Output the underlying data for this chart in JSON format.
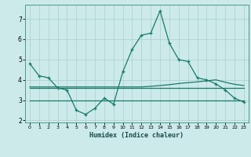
{
  "x": [
    0,
    1,
    2,
    3,
    4,
    5,
    6,
    7,
    8,
    9,
    10,
    11,
    12,
    13,
    14,
    15,
    16,
    17,
    18,
    19,
    20,
    21,
    22,
    23
  ],
  "y_main": [
    4.8,
    4.2,
    4.1,
    3.6,
    3.5,
    2.5,
    2.3,
    2.6,
    3.1,
    2.8,
    4.4,
    5.5,
    6.2,
    6.3,
    7.4,
    5.8,
    5.0,
    4.9,
    4.1,
    4.0,
    3.8,
    3.5,
    3.1,
    2.9
  ],
  "y_avg_high": [
    3.65,
    3.65,
    3.65,
    3.65,
    3.65,
    3.65,
    3.65,
    3.65,
    3.65,
    3.65,
    3.65,
    3.65,
    3.65,
    3.68,
    3.72,
    3.76,
    3.82,
    3.86,
    3.9,
    3.95,
    4.0,
    3.88,
    3.78,
    3.72
  ],
  "y_avg_mid": [
    3.62,
    3.62,
    3.62,
    3.62,
    3.62,
    3.62,
    3.62,
    3.62,
    3.62,
    3.62,
    3.62,
    3.62,
    3.62,
    3.62,
    3.62,
    3.62,
    3.62,
    3.62,
    3.62,
    3.62,
    3.62,
    3.62,
    3.62,
    3.62
  ],
  "y_flat": [
    3.0,
    3.0,
    3.0,
    3.0,
    3.0,
    3.0,
    3.0,
    3.0,
    3.0,
    3.0,
    3.0,
    3.0,
    3.0,
    3.0,
    3.0,
    3.0,
    3.0,
    3.0,
    3.0,
    3.0,
    3.0,
    3.0,
    3.0,
    3.0
  ],
  "line_color": "#1a7a6a",
  "bg_color": "#cceaea",
  "grid_color": "#aacece",
  "xlabel": "Humidex (Indice chaleur)",
  "ylim": [
    1.9,
    7.7
  ],
  "xlim": [
    -0.5,
    23.5
  ],
  "yticks": [
    2,
    3,
    4,
    5,
    6,
    7
  ],
  "xticks": [
    0,
    1,
    2,
    3,
    4,
    5,
    6,
    7,
    8,
    9,
    10,
    11,
    12,
    13,
    14,
    15,
    16,
    17,
    18,
    19,
    20,
    21,
    22,
    23
  ]
}
